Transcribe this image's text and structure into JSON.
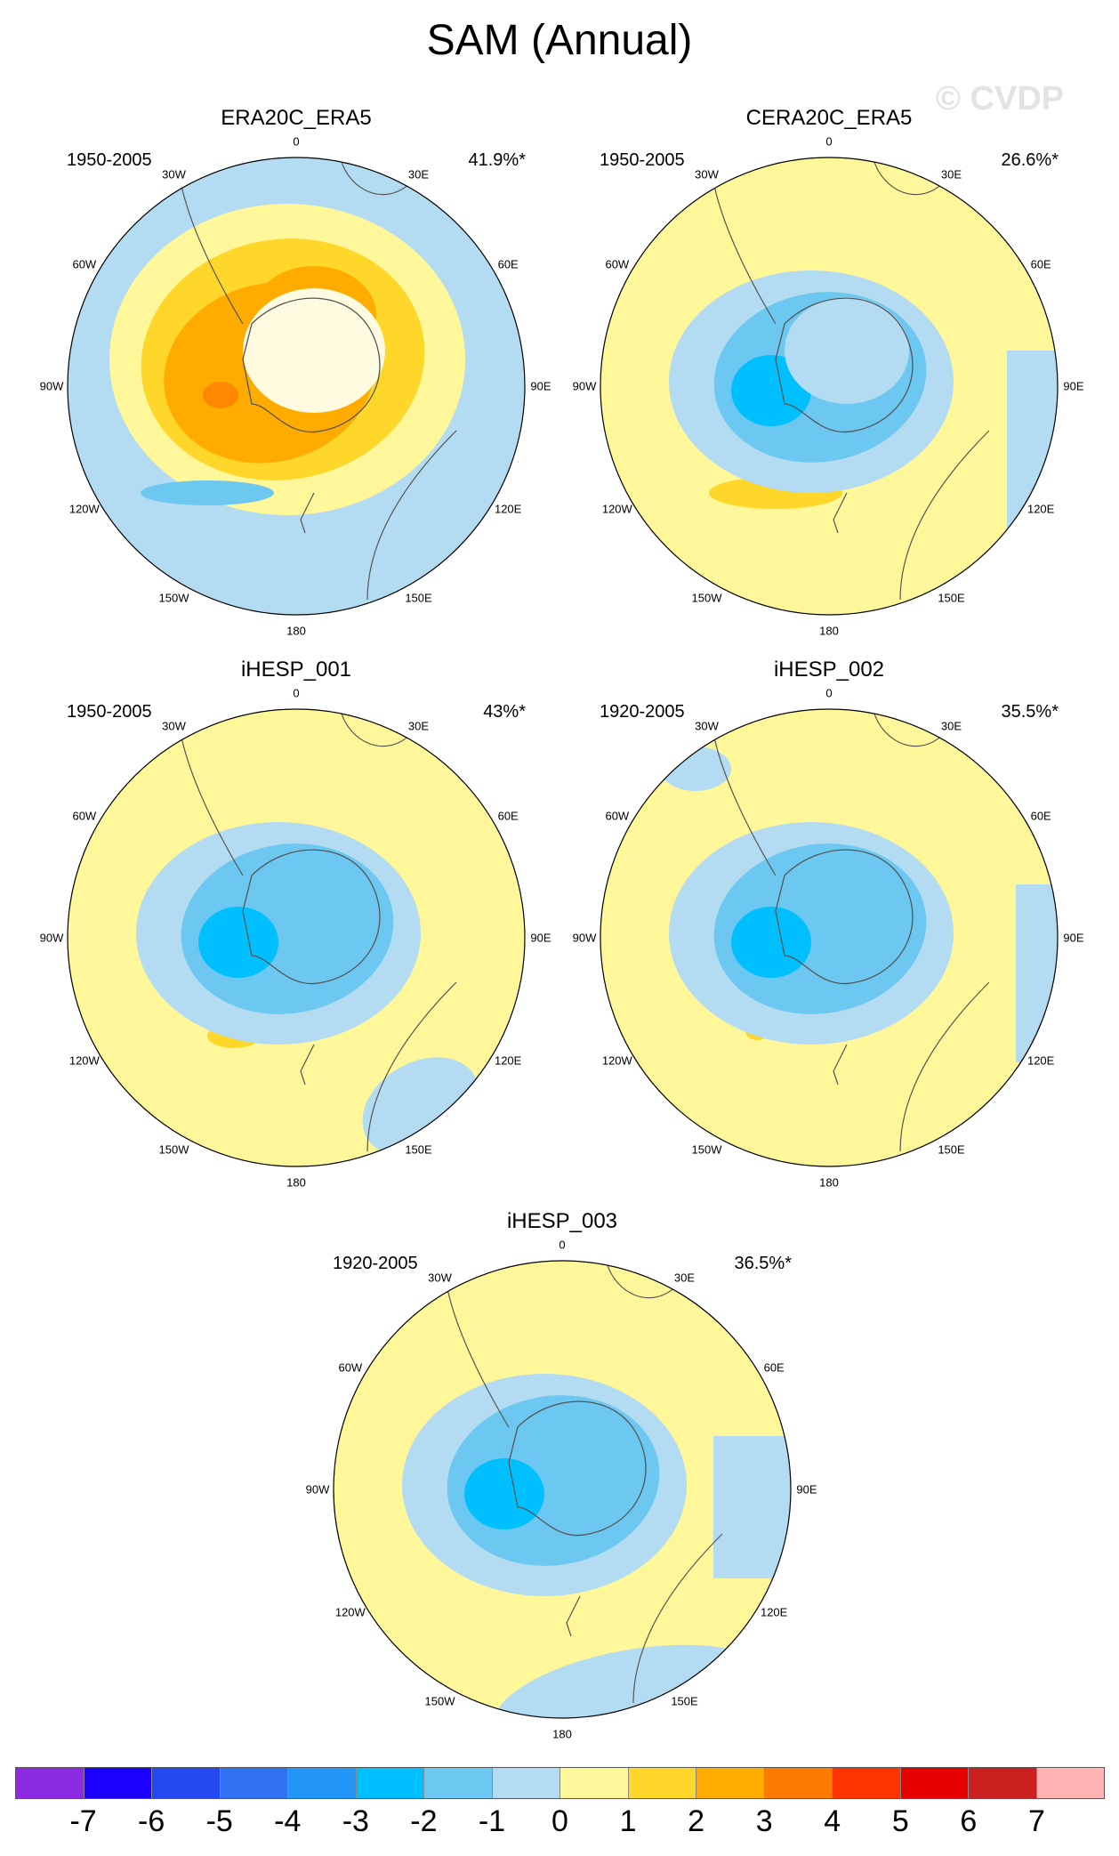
{
  "title": "SAM (Annual)",
  "watermark": "© CVDP",
  "colors": {
    "ocean_light_blue": "#b3dcf2",
    "neutral_yellow": "#fff79a",
    "pos_1": "#ffd62a",
    "pos_2": "#ffab00",
    "pos_3": "#ff8800",
    "neg_2": "#6cc8f0",
    "neg_3": "#00bfff",
    "coast": "#555555"
  },
  "lon_labels": [
    "0",
    "30E",
    "60E",
    "90E",
    "120E",
    "150E",
    "180",
    "150W",
    "120W",
    "90W",
    "60W",
    "30W"
  ],
  "panels": [
    {
      "name": "ERA20C_ERA5",
      "period": "1950-2005",
      "pct": "41.9%*",
      "pattern": "positive"
    },
    {
      "name": "CERA20C_ERA5",
      "period": "1950-2005",
      "pct": "26.6%*",
      "pattern": "negative"
    },
    {
      "name": "iHESP_001",
      "period": "1950-2005",
      "pct": "43%*",
      "pattern": "negative"
    },
    {
      "name": "iHESP_002",
      "period": "1920-2005",
      "pct": "35.5%*",
      "pattern": "negative"
    },
    {
      "name": "iHESP_003",
      "period": "1920-2005",
      "pct": "36.5%*",
      "pattern": "negative"
    }
  ],
  "colorbar": {
    "colors": [
      "#8b2be2",
      "#1a00ff",
      "#2549f0",
      "#2f71f0",
      "#2196f7",
      "#00bfff",
      "#6cc8f0",
      "#b3dcf2",
      "#fff79a",
      "#ffd62a",
      "#ffab00",
      "#ff7a00",
      "#ff3300",
      "#e60000",
      "#cc1f1f",
      "#ffb3b3"
    ],
    "labels": [
      "-7",
      "-6",
      "-5",
      "-4",
      "-3",
      "-2",
      "-1",
      "0",
      "1",
      "2",
      "3",
      "4",
      "5",
      "6",
      "7"
    ]
  }
}
